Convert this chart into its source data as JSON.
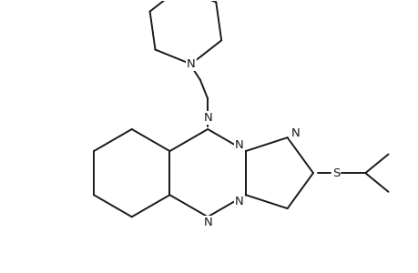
{
  "background_color": "#ffffff",
  "line_color": "#1a1a1a",
  "line_width": 1.4,
  "font_size": 9.5,
  "figsize": [
    4.6,
    3.0
  ],
  "dpi": 100,
  "xlim": [
    0,
    10
  ],
  "ylim": [
    0,
    6.5
  ]
}
